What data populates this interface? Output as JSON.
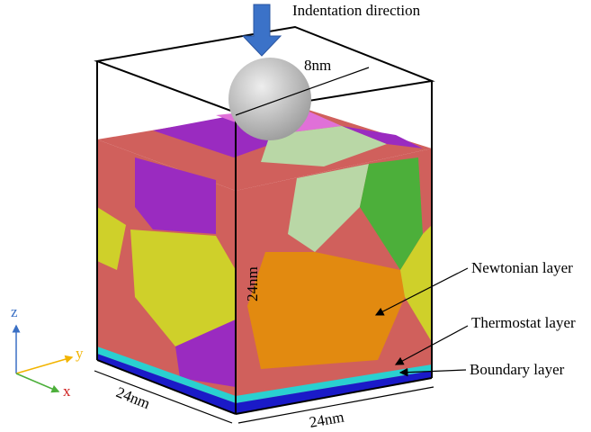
{
  "indenter": {
    "label": "Indentation direction",
    "diameter": "8nm"
  },
  "dimensions": {
    "height": "24nm",
    "width_x": "24nm",
    "width_y": "24nm"
  },
  "layers": {
    "newtonian": "Newtonian layer",
    "thermostat": "Thermostat layer",
    "boundary": "Boundary layer"
  },
  "axes": {
    "z": "z",
    "y": "y",
    "x": "x"
  }
}
